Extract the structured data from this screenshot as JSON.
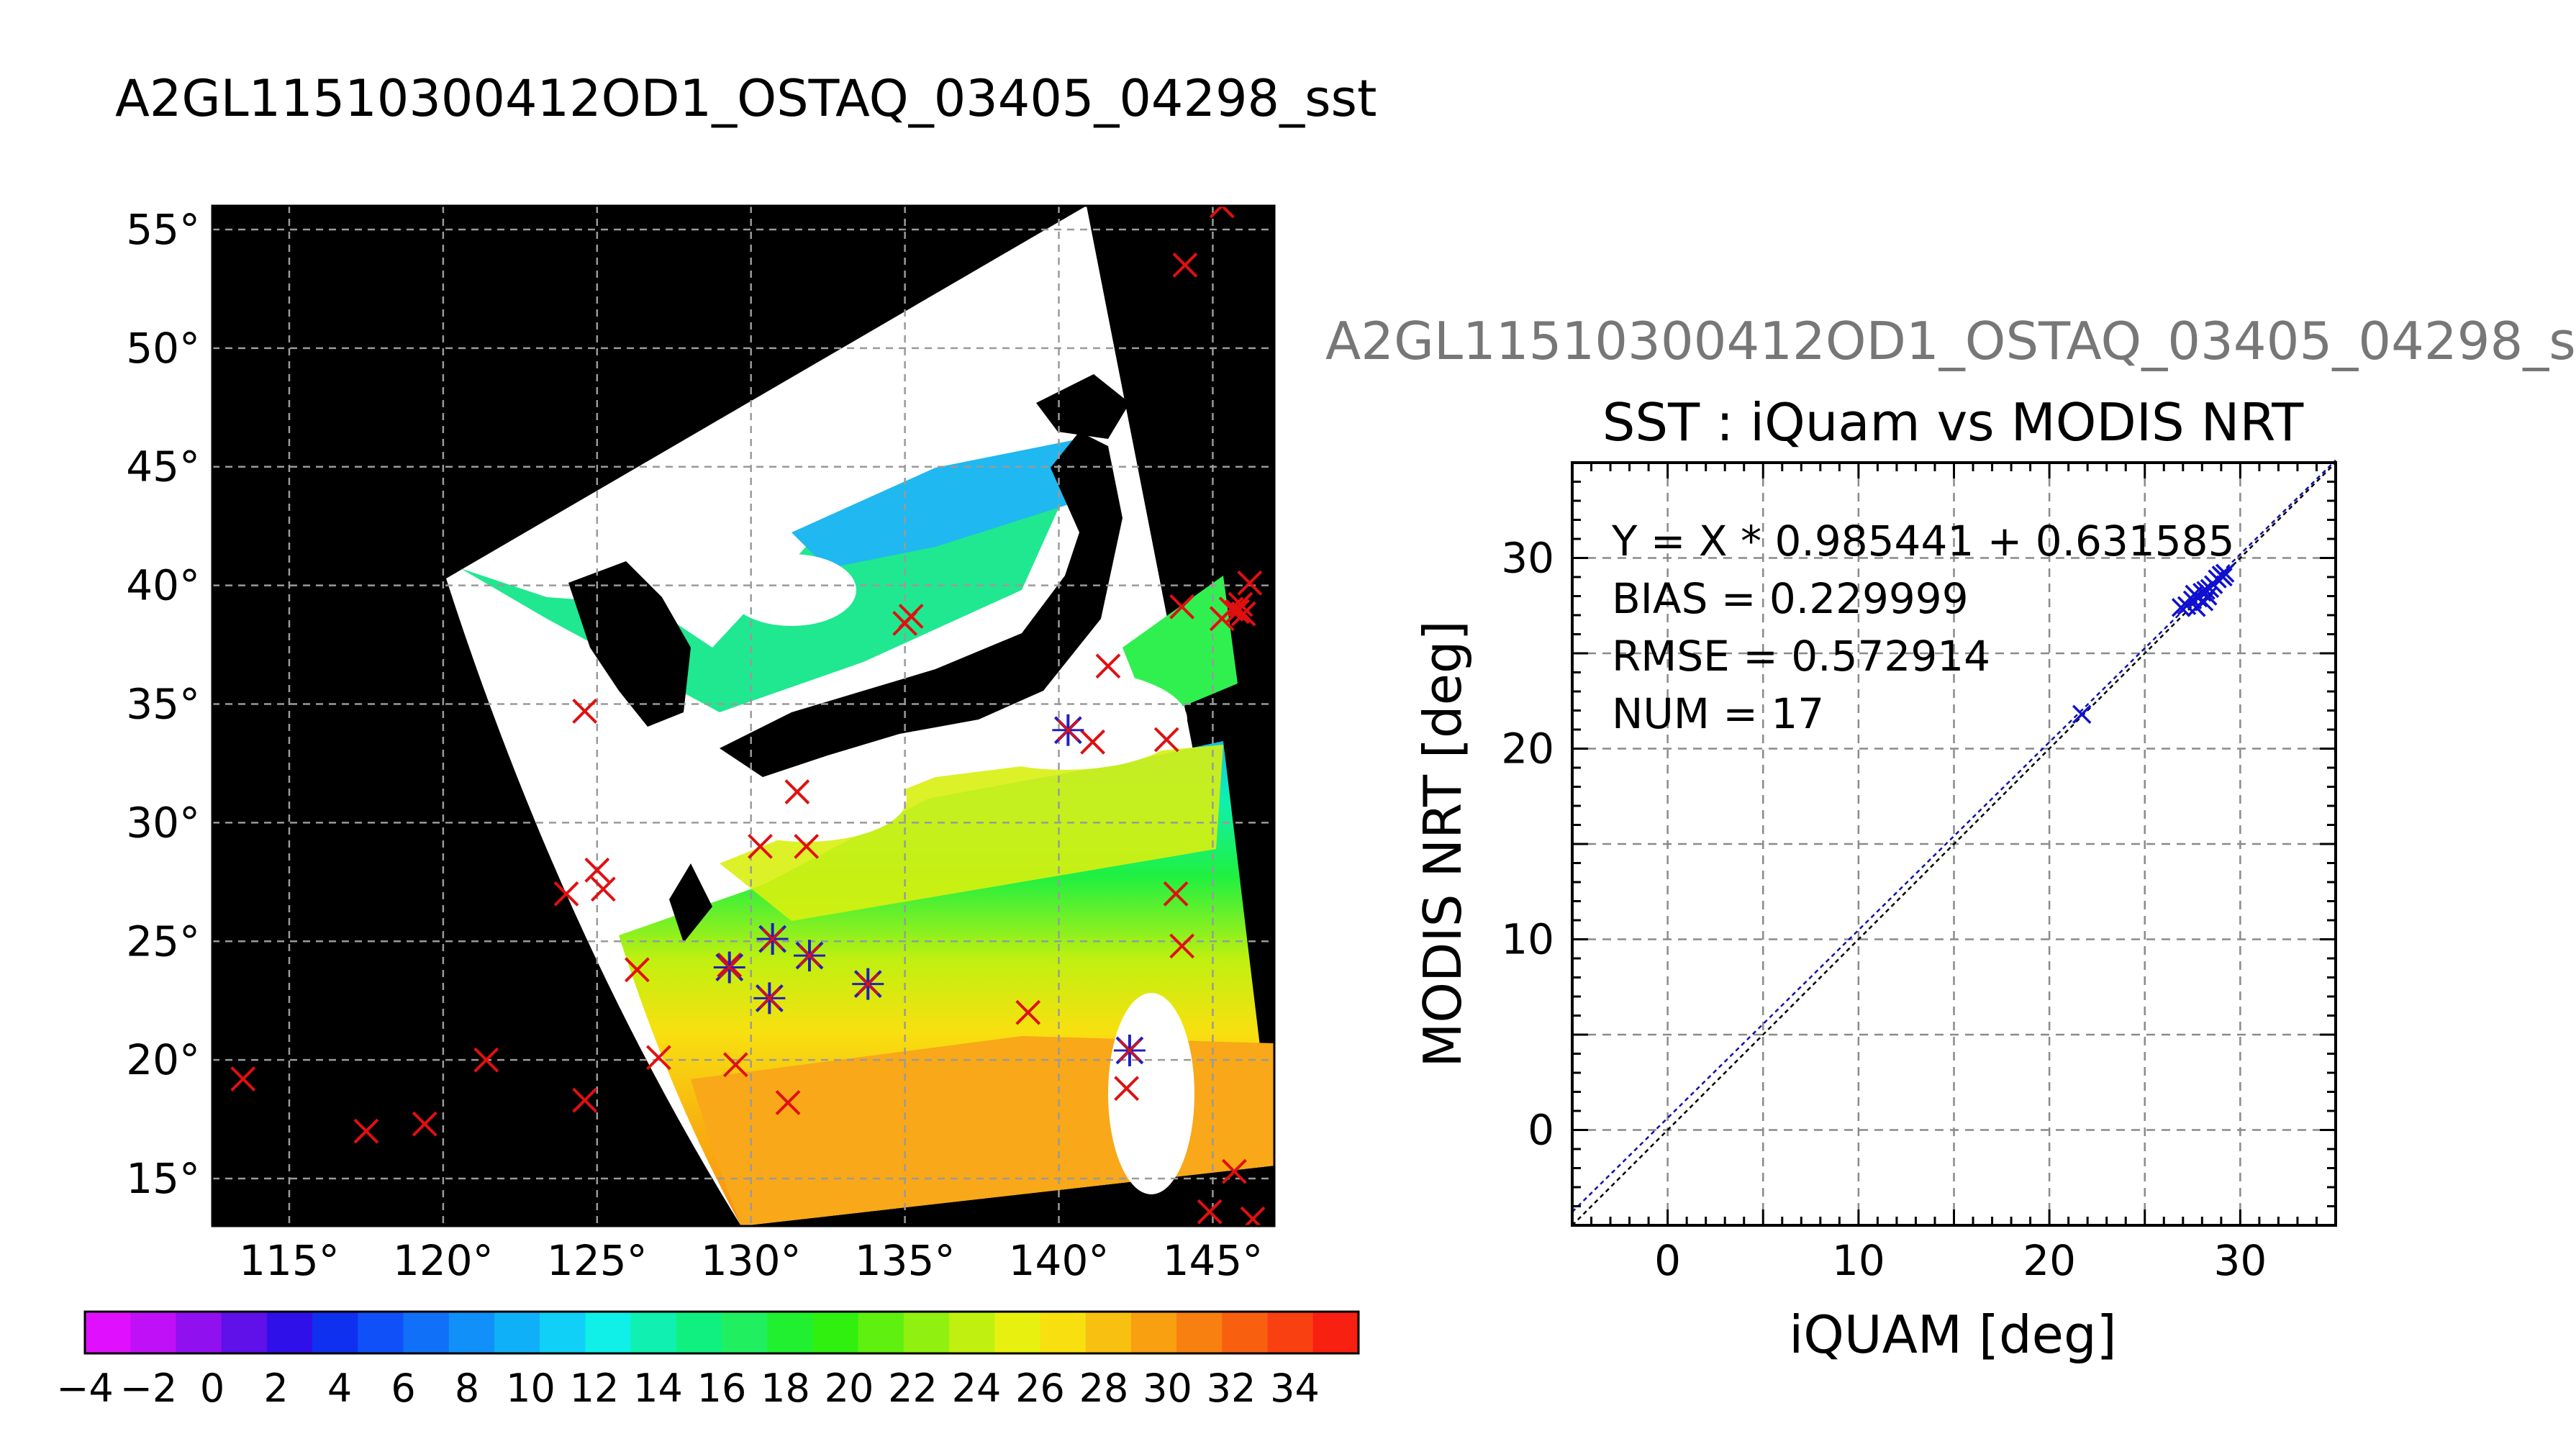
{
  "figure": {
    "title": "A2GL11510300412OD1_OSTAQ_03405_04298_sst",
    "overflow_title": "A2GL11510300412OD1_OSTAQ_03405_04298_s"
  },
  "map": {
    "lon_ticks": [
      115,
      120,
      125,
      130,
      135,
      140,
      145
    ],
    "lat_ticks": [
      15,
      20,
      25,
      30,
      35,
      40,
      45,
      50,
      55
    ],
    "lon_range": [
      112.5,
      147.0
    ],
    "lat_range": [
      13.0,
      56.0
    ],
    "degree_symbol": "°",
    "colors": {
      "land": "#000000",
      "cloud": "#ffffff",
      "grid": "#9a9a9a",
      "marker": "#e01010",
      "match_marker": "#2020c0"
    },
    "red_markers": [
      [
        113.5,
        19.2
      ],
      [
        117.5,
        17.0
      ],
      [
        119.4,
        17.3
      ],
      [
        121.4,
        20.0
      ],
      [
        124.0,
        27.0
      ],
      [
        125.0,
        28.0
      ],
      [
        125.2,
        27.2
      ],
      [
        124.6,
        34.7
      ],
      [
        124.6,
        18.3
      ],
      [
        126.3,
        23.8
      ],
      [
        127.0,
        20.1
      ],
      [
        129.5,
        19.8
      ],
      [
        130.3,
        29.0
      ],
      [
        131.5,
        31.3
      ],
      [
        131.8,
        29.0
      ],
      [
        131.2,
        18.2
      ],
      [
        135.2,
        38.7
      ],
      [
        135.0,
        38.4
      ],
      [
        139.0,
        22.0
      ],
      [
        141.6,
        36.6
      ],
      [
        142.2,
        18.8
      ],
      [
        143.5,
        33.5
      ],
      [
        143.8,
        27.0
      ],
      [
        144.0,
        24.8
      ],
      [
        144.0,
        39.1
      ],
      [
        145.3,
        38.6
      ],
      [
        145.6,
        39.0
      ],
      [
        145.8,
        38.9
      ],
      [
        145.9,
        39.2
      ],
      [
        146.0,
        38.8
      ],
      [
        146.2,
        40.1
      ],
      [
        144.9,
        13.6
      ],
      [
        145.7,
        15.3
      ],
      [
        146.3,
        13.3
      ],
      [
        144.1,
        53.5
      ],
      [
        145.3,
        56.0
      ],
      [
        141.1,
        33.4
      ],
      [
        129.3,
        24.0
      ],
      [
        130.7,
        25.1
      ],
      [
        130.6,
        22.6
      ],
      [
        131.9,
        24.4
      ],
      [
        133.8,
        23.2
      ],
      [
        140.3,
        33.9
      ],
      [
        142.3,
        20.4
      ]
    ],
    "match_markers": [
      [
        129.3,
        23.9
      ],
      [
        130.7,
        25.1
      ],
      [
        130.6,
        22.6
      ],
      [
        131.9,
        24.4
      ],
      [
        133.8,
        23.2
      ],
      [
        140.3,
        33.9
      ],
      [
        142.3,
        20.4
      ]
    ]
  },
  "colorbar": {
    "tick_labels": [
      "−4",
      "−2",
      "0",
      "2",
      "4",
      "6",
      "8",
      "10",
      "12",
      "14",
      "16",
      "18",
      "20",
      "22",
      "24",
      "26",
      "28",
      "30",
      "32",
      "34"
    ],
    "range": [
      -4,
      36
    ],
    "colors": [
      "#e010ff",
      "#c010f8",
      "#9010f0",
      "#6010e8",
      "#3010e8",
      "#1030f0",
      "#1050f8",
      "#1070f8",
      "#1090f8",
      "#10b0f8",
      "#10d0f8",
      "#10f0e8",
      "#10f0b0",
      "#10f080",
      "#20f060",
      "#20f030",
      "#30f010",
      "#60f010",
      "#90f010",
      "#c0f010",
      "#e8f010",
      "#f8e010",
      "#f8c010",
      "#f8a010",
      "#f88010",
      "#f86010",
      "#f84010",
      "#f82010"
    ]
  },
  "chart_data": {
    "type": "scatter",
    "title": "SST : iQuam vs MODIS NRT",
    "xlabel": "iQUAM [deg]",
    "ylabel": "MODIS NRT [deg]",
    "xlim": [
      -5,
      35
    ],
    "ylim": [
      -5,
      35
    ],
    "x_ticks": [
      0,
      10,
      20,
      30
    ],
    "y_ticks": [
      0,
      10,
      20,
      30
    ],
    "grid": true,
    "annotations": [
      "Y = X * 0.985441 + 0.631585",
      "BIAS = 0.229999",
      "RMSE = 0.572914",
      "NUM = 17"
    ],
    "fit": {
      "slope": 0.985441,
      "intercept": 0.631585
    },
    "points": [
      [
        21.7,
        21.8
      ],
      [
        26.9,
        27.4
      ],
      [
        27.2,
        27.5
      ],
      [
        27.5,
        27.8
      ],
      [
        27.6,
        28.1
      ],
      [
        27.8,
        27.9
      ],
      [
        28.0,
        28.2
      ],
      [
        28.1,
        27.7
      ],
      [
        28.2,
        28.3
      ],
      [
        28.3,
        28.0
      ],
      [
        28.4,
        28.4
      ],
      [
        28.6,
        28.6
      ],
      [
        28.8,
        28.9
      ],
      [
        29.0,
        29.1
      ],
      [
        29.1,
        29.0
      ],
      [
        29.2,
        29.2
      ],
      [
        27.7,
        27.4
      ]
    ]
  }
}
